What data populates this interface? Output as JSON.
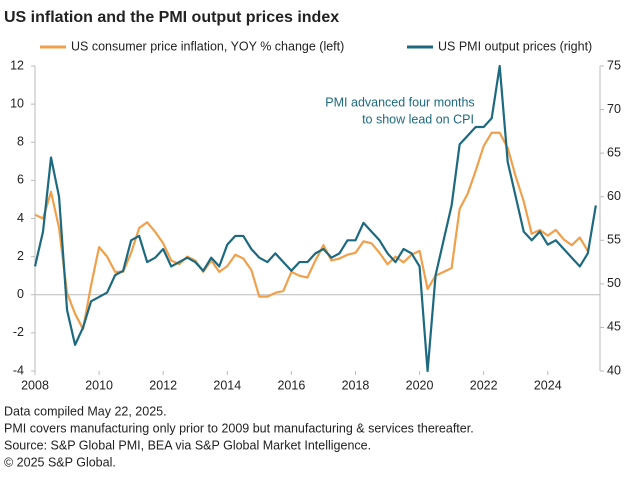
{
  "chart_data": {
    "type": "line",
    "title": "US inflation and the PMI output prices index",
    "annotation": [
      "PMI advanced four months",
      "to show lead on CPI"
    ],
    "footnotes": [
      "Data compiled May 22, 2025.",
      "PMI covers manufacturing only prior to 2009 but manufacturing & services thereafter.",
      "Source: S&P Global PMI, BEA via S&P Global Market Intelligence.",
      "© 2025 S&P Global."
    ],
    "x": [
      2008,
      2008.25,
      2008.5,
      2008.75,
      2009,
      2009.25,
      2009.5,
      2009.75,
      2010,
      2010.25,
      2010.5,
      2010.75,
      2011,
      2011.25,
      2011.5,
      2011.75,
      2012,
      2012.25,
      2012.5,
      2012.75,
      2013,
      2013.25,
      2013.5,
      2013.75,
      2014,
      2014.25,
      2014.5,
      2014.75,
      2015,
      2015.25,
      2015.5,
      2015.75,
      2016,
      2016.25,
      2016.5,
      2016.75,
      2017,
      2017.25,
      2017.5,
      2017.75,
      2018,
      2018.25,
      2018.5,
      2018.75,
      2019,
      2019.25,
      2019.5,
      2019.75,
      2020,
      2020.25,
      2020.5,
      2020.75,
      2021,
      2021.25,
      2021.5,
      2021.75,
      2022,
      2022.25,
      2022.5,
      2022.75,
      2023,
      2023.25,
      2023.5,
      2023.75,
      2024,
      2024.25,
      2024.5,
      2024.75,
      2025,
      2025.25,
      2025.5
    ],
    "series": [
      {
        "name": "US consumer price inflation, YOY % change (left)",
        "color": "#f0a04b",
        "axis": "y",
        "values": [
          4.2,
          4.0,
          5.4,
          3.5,
          0.1,
          -1.0,
          -1.8,
          0.5,
          2.5,
          2.0,
          1.2,
          1.2,
          2.2,
          3.5,
          3.8,
          3.3,
          2.7,
          1.8,
          1.6,
          2.0,
          1.8,
          1.2,
          1.8,
          1.2,
          1.5,
          2.1,
          1.9,
          1.3,
          -0.1,
          -0.1,
          0.1,
          0.2,
          1.2,
          1.0,
          0.9,
          1.8,
          2.6,
          1.8,
          1.9,
          2.1,
          2.2,
          2.8,
          2.7,
          2.2,
          1.6,
          2.0,
          1.7,
          2.1,
          2.3,
          0.3,
          1.0,
          1.2,
          1.4,
          4.5,
          5.3,
          6.5,
          7.8,
          8.5,
          8.5,
          7.7,
          6.2,
          4.9,
          3.2,
          3.4,
          3.1,
          3.4,
          2.9,
          2.6,
          3.0,
          2.3,
          null
        ]
      },
      {
        "name": "US PMI output prices (right)",
        "color": "#1d6a80",
        "axis": "y2",
        "values": [
          52,
          56,
          64.5,
          60,
          47,
          43,
          45,
          48,
          48.5,
          49,
          51,
          51.5,
          55,
          55.5,
          52.5,
          53,
          54,
          52,
          52.5,
          53,
          52.5,
          51.5,
          53,
          52,
          54.5,
          55.5,
          55.5,
          54,
          53,
          52.5,
          53.5,
          52.5,
          51.5,
          52.5,
          52.5,
          53.5,
          54,
          53,
          53.5,
          55,
          55,
          57,
          56,
          55,
          53.5,
          52.5,
          54,
          53.5,
          52,
          40,
          51,
          55,
          59,
          66,
          67,
          68,
          68,
          69,
          75,
          64,
          60,
          56,
          55,
          56,
          54.5,
          55,
          54,
          53,
          52,
          53.5,
          59
        ]
      }
    ],
    "xlim": [
      2008,
      2025.63
    ],
    "xticks": [
      2008,
      2010,
      2012,
      2014,
      2016,
      2018,
      2020,
      2022,
      2024
    ],
    "ylim": [
      -4,
      12
    ],
    "yticks": [
      -4,
      -2,
      0,
      2,
      4,
      6,
      8,
      10,
      12
    ],
    "y2lim": [
      40,
      75
    ],
    "y2ticks": [
      40,
      45,
      50,
      55,
      60,
      65,
      70,
      75
    ]
  }
}
